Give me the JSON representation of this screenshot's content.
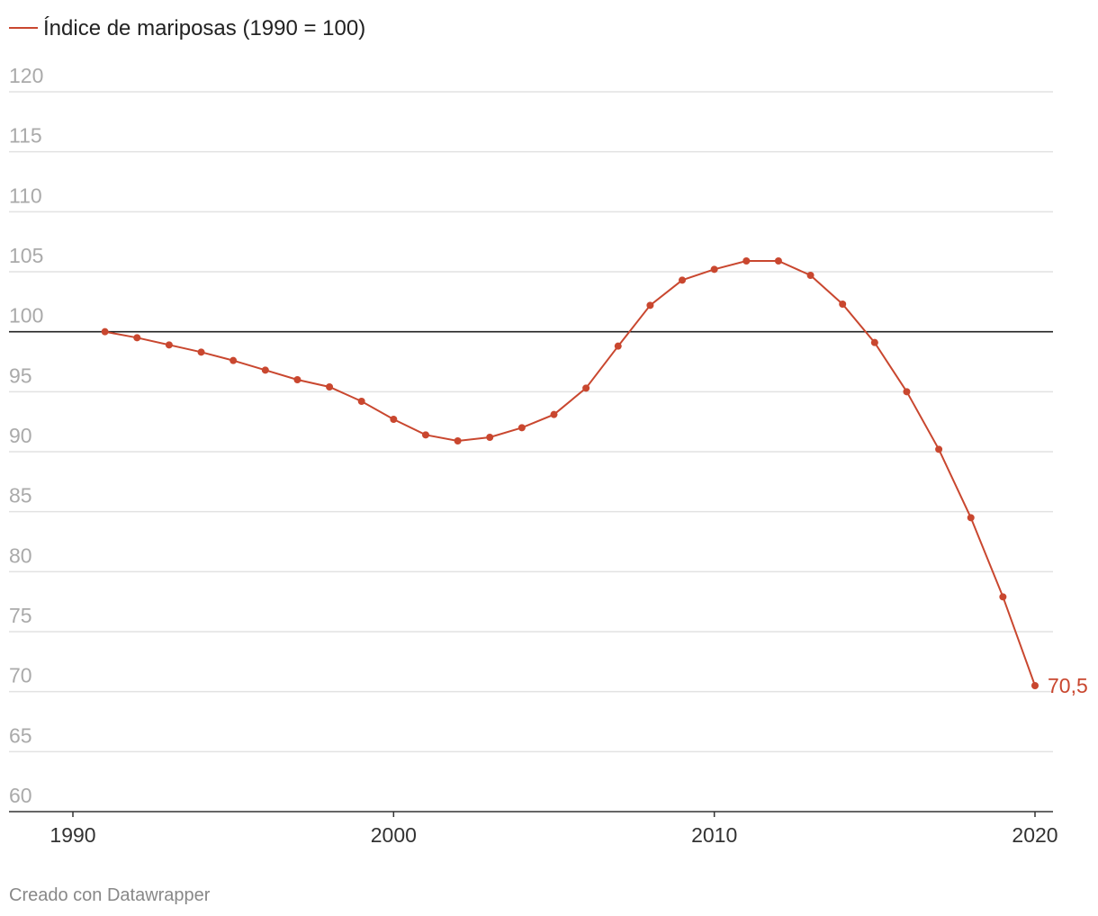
{
  "colors": {
    "series": "#c9472f",
    "grid": "#e2e2e2",
    "axis": "#333333"
  },
  "chart_data": {
    "type": "line",
    "legend": {
      "label": "Índice de mariposas (1990 = 100)",
      "position": "top-left"
    },
    "x": [
      1991,
      1992,
      1993,
      1994,
      1995,
      1996,
      1997,
      1998,
      1999,
      2000,
      2001,
      2002,
      2003,
      2004,
      2005,
      2006,
      2007,
      2008,
      2009,
      2010,
      2011,
      2012,
      2013,
      2014,
      2015,
      2016,
      2017,
      2018,
      2019,
      2020
    ],
    "series": [
      {
        "name": "Índice de mariposas (1990 = 100)",
        "values": [
          100,
          99.5,
          98.9,
          98.3,
          97.6,
          96.8,
          96.0,
          95.4,
          94.2,
          92.7,
          91.4,
          90.9,
          91.2,
          92.0,
          93.1,
          95.3,
          98.8,
          102.2,
          104.3,
          105.2,
          105.9,
          105.9,
          104.7,
          102.3,
          99.1,
          95.0,
          90.2,
          84.5,
          77.9,
          70.5
        ]
      }
    ],
    "end_label": "70,5",
    "xticks": [
      "1990",
      "2000",
      "2010",
      "2020"
    ],
    "xtick_values": [
      1990,
      2000,
      2010,
      2020
    ],
    "xlim": [
      1990,
      2020
    ],
    "yticks": [
      "120",
      "115",
      "110",
      "105",
      "100",
      "95",
      "90",
      "85",
      "80",
      "75",
      "70",
      "65",
      "60"
    ],
    "ytick_values": [
      120,
      115,
      110,
      105,
      100,
      95,
      90,
      85,
      80,
      75,
      70,
      65,
      60
    ],
    "ylim": [
      60,
      120
    ],
    "reference_line": 100,
    "grid": true
  },
  "footer": {
    "credit": "Creado con Datawrapper"
  }
}
